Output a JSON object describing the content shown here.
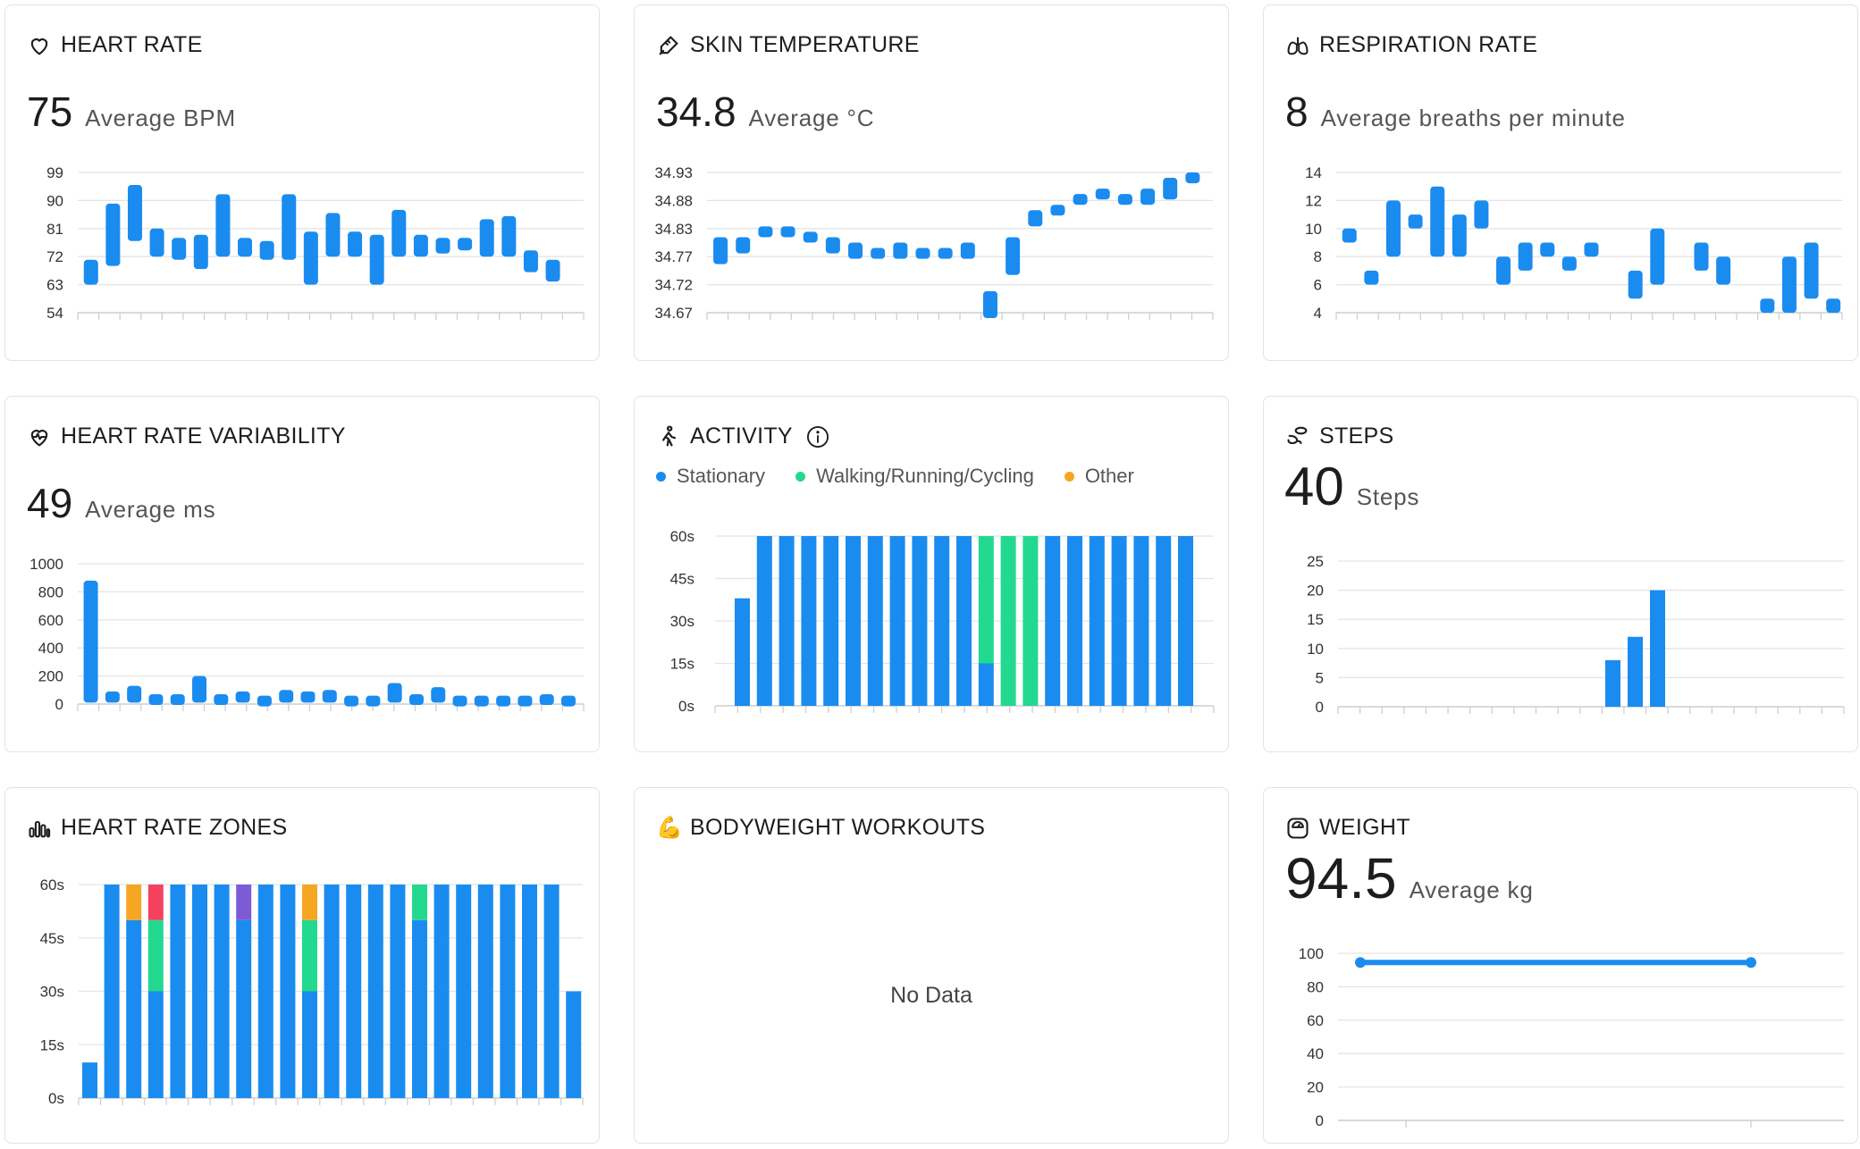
{
  "colors": {
    "stationary": "#1a8cf0",
    "walking": "#22d98f",
    "other": "#f5a623",
    "zone_red": "#f4425e",
    "zone_purple": "#7b5cd6",
    "grid": "#e4e4e8",
    "axis": "#cfcfd4"
  },
  "heart_rate": {
    "icon": "heart-icon",
    "title": "HEART RATE",
    "value": "75",
    "unit": "Average BPM",
    "chart_data": {
      "type": "range-bar",
      "y_ticks": [
        "99",
        "90",
        "81",
        "72",
        "63",
        "54"
      ],
      "ylim": [
        54,
        99
      ],
      "ranges": [
        [
          63,
          71
        ],
        [
          69,
          89
        ],
        [
          77,
          95
        ],
        [
          72,
          81
        ],
        [
          71,
          78
        ],
        [
          68,
          79
        ],
        [
          72,
          92
        ],
        [
          72,
          78
        ],
        [
          71,
          77
        ],
        [
          71,
          92
        ],
        [
          63,
          80
        ],
        [
          72,
          86
        ],
        [
          72,
          80
        ],
        [
          63,
          79
        ],
        [
          72,
          87
        ],
        [
          72,
          79
        ],
        [
          73,
          78
        ],
        [
          74,
          78
        ],
        [
          72,
          84
        ],
        [
          72,
          85
        ],
        [
          67,
          74
        ],
        [
          64,
          71
        ]
      ]
    }
  },
  "skin_temp": {
    "icon": "thermometer-icon",
    "title": "SKIN TEMPERATURE",
    "value": "34.8",
    "unit": "Average °C",
    "chart_data": {
      "type": "range-bar",
      "y_ticks": [
        "34.93",
        "34.88",
        "34.83",
        "34.77",
        "34.72",
        "34.67"
      ],
      "ylim": [
        34.67,
        34.93
      ],
      "ranges": [
        [
          34.76,
          34.81
        ],
        [
          34.78,
          34.81
        ],
        [
          34.81,
          34.83
        ],
        [
          34.81,
          34.83
        ],
        [
          34.8,
          34.82
        ],
        [
          34.78,
          34.81
        ],
        [
          34.77,
          34.8
        ],
        [
          34.77,
          34.79
        ],
        [
          34.77,
          34.8
        ],
        [
          34.77,
          34.79
        ],
        [
          34.77,
          34.79
        ],
        [
          34.77,
          34.8
        ],
        [
          34.66,
          34.71
        ],
        [
          34.74,
          34.81
        ],
        [
          34.83,
          34.86
        ],
        [
          34.85,
          34.87
        ],
        [
          34.87,
          34.89
        ],
        [
          34.88,
          34.9
        ],
        [
          34.87,
          34.89
        ],
        [
          34.87,
          34.9
        ],
        [
          34.88,
          34.92
        ],
        [
          34.91,
          34.93
        ]
      ]
    }
  },
  "respiration": {
    "icon": "lungs-icon",
    "title": "RESPIRATION RATE",
    "value": "8",
    "unit": "Average breaths per minute",
    "chart_data": {
      "type": "range-bar",
      "y_ticks": [
        "14",
        "12",
        "10",
        "8",
        "6",
        "4"
      ],
      "ylim": [
        4,
        14
      ],
      "ranges": [
        [
          9,
          10
        ],
        [
          6,
          7
        ],
        [
          8,
          12
        ],
        [
          10,
          11
        ],
        [
          8,
          13
        ],
        [
          8,
          11
        ],
        [
          10,
          12
        ],
        [
          6,
          8
        ],
        [
          7,
          9
        ],
        [
          8,
          9
        ],
        [
          7,
          8
        ],
        [
          8,
          9
        ],
        [
          5,
          7
        ],
        [
          6,
          10
        ],
        [
          7,
          9
        ],
        [
          6,
          8
        ],
        [
          4,
          5
        ],
        [
          4,
          8
        ],
        [
          5,
          9
        ],
        [
          4,
          5
        ]
      ],
      "slots": [
        0,
        1,
        2,
        3,
        4,
        5,
        6,
        7,
        8,
        9,
        10,
        11,
        13,
        14,
        16,
        17,
        19,
        20,
        21,
        22
      ]
    }
  },
  "hrv": {
    "icon": "heart-pulse-icon",
    "title": "HEART RATE VARIABILITY",
    "value": "49",
    "unit": "Average ms",
    "chart_data": {
      "type": "range-bar",
      "y_ticks": [
        "1000",
        "800",
        "600",
        "400",
        "200",
        "0"
      ],
      "ylim": [
        0,
        1000
      ],
      "ranges": [
        [
          10,
          880
        ],
        [
          10,
          90
        ],
        [
          10,
          130
        ],
        [
          10,
          70
        ],
        [
          10,
          70
        ],
        [
          10,
          200
        ],
        [
          10,
          70
        ],
        [
          10,
          90
        ],
        [
          10,
          60
        ],
        [
          10,
          100
        ],
        [
          10,
          90
        ],
        [
          10,
          100
        ],
        [
          10,
          60
        ],
        [
          10,
          60
        ],
        [
          10,
          150
        ],
        [
          10,
          70
        ],
        [
          10,
          120
        ],
        [
          10,
          60
        ],
        [
          10,
          60
        ],
        [
          10,
          60
        ],
        [
          10,
          60
        ],
        [
          10,
          70
        ],
        [
          10,
          60
        ]
      ]
    }
  },
  "activity": {
    "icon": "walking-person-icon",
    "title": "ACTIVITY",
    "legend": [
      "Stationary",
      "Walking/Running/Cycling",
      "Other"
    ],
    "chart_data": {
      "type": "stacked-bar",
      "y_ticks": [
        "60s",
        "45s",
        "30s",
        "15s",
        "0s"
      ],
      "ylim": [
        0,
        60
      ],
      "stationary": [
        38,
        60,
        60,
        60,
        60,
        60,
        60,
        60,
        60,
        60,
        60,
        15,
        0,
        0,
        60,
        60,
        60,
        60,
        60,
        60,
        60
      ],
      "walking": [
        0,
        0,
        0,
        0,
        0,
        0,
        0,
        0,
        0,
        0,
        0,
        45,
        60,
        60,
        0,
        0,
        0,
        0,
        0,
        0,
        0
      ]
    }
  },
  "steps": {
    "icon": "footsteps-icon",
    "title": "STEPS",
    "value": "40",
    "unit": "Steps",
    "chart_data": {
      "type": "bar",
      "y_ticks": [
        "25",
        "20",
        "15",
        "10",
        "5",
        "0"
      ],
      "ylim": [
        0,
        25
      ],
      "values": [
        0,
        0,
        0,
        0,
        0,
        0,
        0,
        0,
        0,
        0,
        0,
        0,
        8,
        12,
        20,
        0,
        0,
        0,
        0,
        0,
        0,
        0
      ]
    }
  },
  "zones": {
    "icon": "bar-chart-icon",
    "title": "HEART RATE ZONES",
    "chart_data": {
      "type": "stacked-bar",
      "y_ticks": [
        "60s",
        "45s",
        "30s",
        "15s",
        "0s"
      ],
      "ylim": [
        0,
        60
      ],
      "stacks": [
        [
          [
            10,
            "stationary"
          ]
        ],
        [
          [
            60,
            "stationary"
          ]
        ],
        [
          [
            50,
            "stationary"
          ],
          [
            10,
            "other"
          ]
        ],
        [
          [
            30,
            "stationary"
          ],
          [
            20,
            "walking"
          ],
          [
            10,
            "zone_red"
          ]
        ],
        [
          [
            60,
            "stationary"
          ]
        ],
        [
          [
            60,
            "stationary"
          ]
        ],
        [
          [
            60,
            "stationary"
          ]
        ],
        [
          [
            50,
            "stationary"
          ],
          [
            10,
            "zone_purple"
          ]
        ],
        [
          [
            60,
            "stationary"
          ]
        ],
        [
          [
            60,
            "stationary"
          ]
        ],
        [
          [
            30,
            "stationary"
          ],
          [
            20,
            "walking"
          ],
          [
            10,
            "other"
          ]
        ],
        [
          [
            60,
            "stationary"
          ]
        ],
        [
          [
            60,
            "stationary"
          ]
        ],
        [
          [
            60,
            "stationary"
          ]
        ],
        [
          [
            60,
            "stationary"
          ]
        ],
        [
          [
            50,
            "stationary"
          ],
          [
            10,
            "walking"
          ]
        ],
        [
          [
            60,
            "stationary"
          ]
        ],
        [
          [
            60,
            "stationary"
          ]
        ],
        [
          [
            60,
            "stationary"
          ]
        ],
        [
          [
            60,
            "stationary"
          ]
        ],
        [
          [
            60,
            "stationary"
          ]
        ],
        [
          [
            60,
            "stationary"
          ]
        ],
        [
          [
            30,
            "stationary"
          ]
        ]
      ]
    }
  },
  "workouts": {
    "icon": "flexed-biceps-icon",
    "emoji": "💪",
    "title": "BODYWEIGHT WORKOUTS",
    "empty_text": "No Data"
  },
  "weight": {
    "icon": "scale-icon",
    "title": "WEIGHT",
    "value": "94.5",
    "unit": "Average kg",
    "chart_data": {
      "type": "line",
      "y_ticks": [
        "100",
        "80",
        "60",
        "40",
        "20",
        "0"
      ],
      "ylim": [
        0,
        100
      ],
      "values": [
        94.5,
        94.5
      ]
    }
  }
}
